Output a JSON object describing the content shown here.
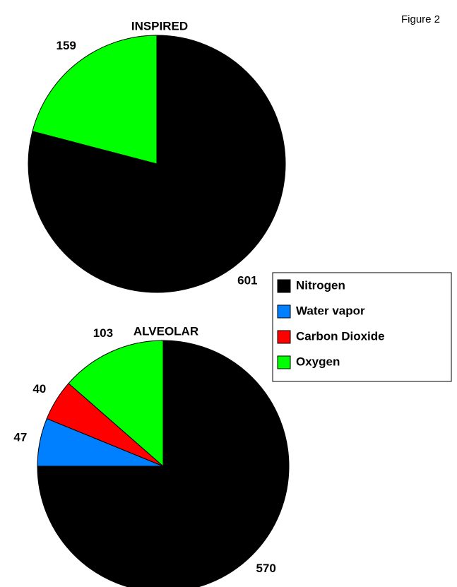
{
  "figure_label": "Figure 2",
  "chart_data": [
    {
      "type": "pie",
      "title": "INSPIRED",
      "categories": [
        "Nitrogen",
        "Oxygen"
      ],
      "values": [
        601,
        159
      ],
      "colors": [
        "#000000",
        "#00ff00"
      ]
    },
    {
      "type": "pie",
      "title": "ALVEOLAR",
      "categories": [
        "Nitrogen",
        "Water vapor",
        "Carbon Dioxide",
        "Oxygen"
      ],
      "values": [
        570,
        47,
        40,
        103
      ],
      "colors": [
        "#000000",
        "#0080ff",
        "#ff0000",
        "#00ff00"
      ],
      "legend": true
    }
  ]
}
